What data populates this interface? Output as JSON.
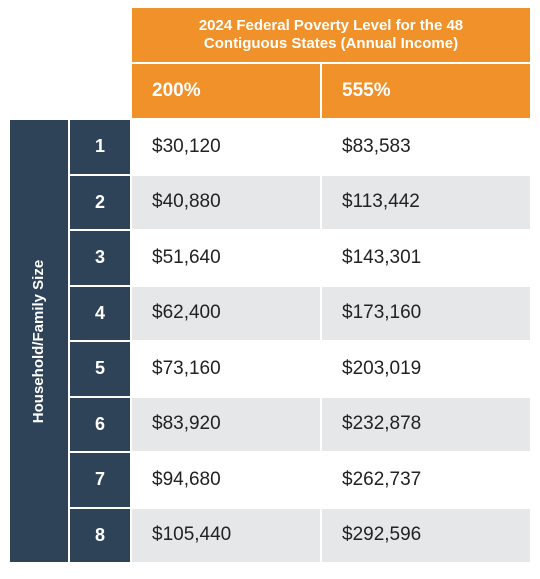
{
  "header": {
    "title": "2024 Federal Poverty Level for the 48 Contiguous States (Annual Income)"
  },
  "table": {
    "columns": [
      "200%",
      "555%"
    ],
    "row_header": "Household/Family Size",
    "rows": [
      [
        "1",
        "$30,120",
        "$83,583"
      ],
      [
        "2",
        "$40,880",
        "$113,442"
      ],
      [
        "3",
        "$51,640",
        "$143,301"
      ],
      [
        "4",
        "$62,400",
        "$173,160"
      ],
      [
        "5",
        "$73,160",
        "$203,019"
      ],
      [
        "6",
        "$83,920",
        "$232,878"
      ],
      [
        "7",
        "$94,680",
        "$262,737"
      ],
      [
        "8",
        "$105,440",
        "$292,596"
      ]
    ]
  }
}
